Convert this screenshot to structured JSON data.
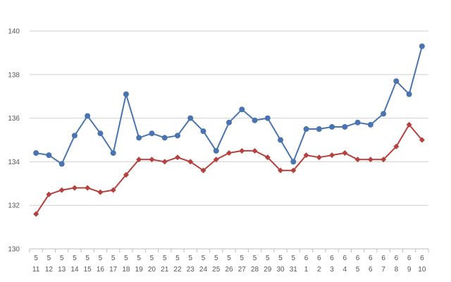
{
  "chart_data": {
    "type": "line",
    "title": "",
    "xlabel": "",
    "ylabel": "",
    "ylim": [
      130,
      140
    ],
    "yticks": [
      "130",
      "132",
      "134",
      "136",
      "138",
      "140"
    ],
    "grid": true,
    "categories": [
      {
        "month": "5",
        "day": "11"
      },
      {
        "month": "5",
        "day": "12"
      },
      {
        "month": "5",
        "day": "13"
      },
      {
        "month": "5",
        "day": "14"
      },
      {
        "month": "5",
        "day": "15"
      },
      {
        "month": "5",
        "day": "16"
      },
      {
        "month": "5",
        "day": "17"
      },
      {
        "month": "5",
        "day": "18"
      },
      {
        "month": "5",
        "day": "19"
      },
      {
        "month": "5",
        "day": "20"
      },
      {
        "month": "5",
        "day": "21"
      },
      {
        "month": "5",
        "day": "22"
      },
      {
        "month": "5",
        "day": "23"
      },
      {
        "month": "5",
        "day": "24"
      },
      {
        "month": "5",
        "day": "25"
      },
      {
        "month": "5",
        "day": "26"
      },
      {
        "month": "5",
        "day": "27"
      },
      {
        "month": "5",
        "day": "28"
      },
      {
        "month": "5",
        "day": "29"
      },
      {
        "month": "5",
        "day": "30"
      },
      {
        "month": "5",
        "day": "31"
      },
      {
        "month": "6",
        "day": "1"
      },
      {
        "month": "6",
        "day": "2"
      },
      {
        "month": "6",
        "day": "3"
      },
      {
        "month": "6",
        "day": "4"
      },
      {
        "month": "6",
        "day": "5"
      },
      {
        "month": "6",
        "day": "6"
      },
      {
        "month": "6",
        "day": "7"
      },
      {
        "month": "6",
        "day": "8"
      },
      {
        "month": "6",
        "day": "9"
      },
      {
        "month": "6",
        "day": "10"
      }
    ],
    "series": [
      {
        "color": "#4a74b0",
        "marker": "circle",
        "values": [
          134.4,
          134.3,
          133.9,
          135.2,
          136.1,
          135.3,
          134.4,
          137.1,
          135.1,
          135.3,
          135.1,
          135.2,
          136.0,
          135.4,
          134.5,
          135.8,
          136.4,
          135.9,
          136.0,
          135.0,
          134.0,
          135.5,
          135.5,
          135.6,
          135.6,
          135.8,
          135.7,
          136.2,
          137.7,
          137.1,
          139.3
        ]
      },
      {
        "color": "#b5403d",
        "marker": "diamond",
        "values": [
          131.6,
          132.5,
          132.7,
          132.8,
          132.8,
          132.6,
          132.7,
          133.4,
          134.1,
          134.1,
          134.0,
          134.2,
          134.0,
          133.6,
          134.1,
          134.4,
          134.5,
          134.5,
          134.2,
          133.6,
          133.6,
          134.3,
          134.2,
          134.3,
          134.4,
          134.1,
          134.1,
          134.1,
          134.7,
          135.7,
          135.0
        ]
      }
    ]
  }
}
